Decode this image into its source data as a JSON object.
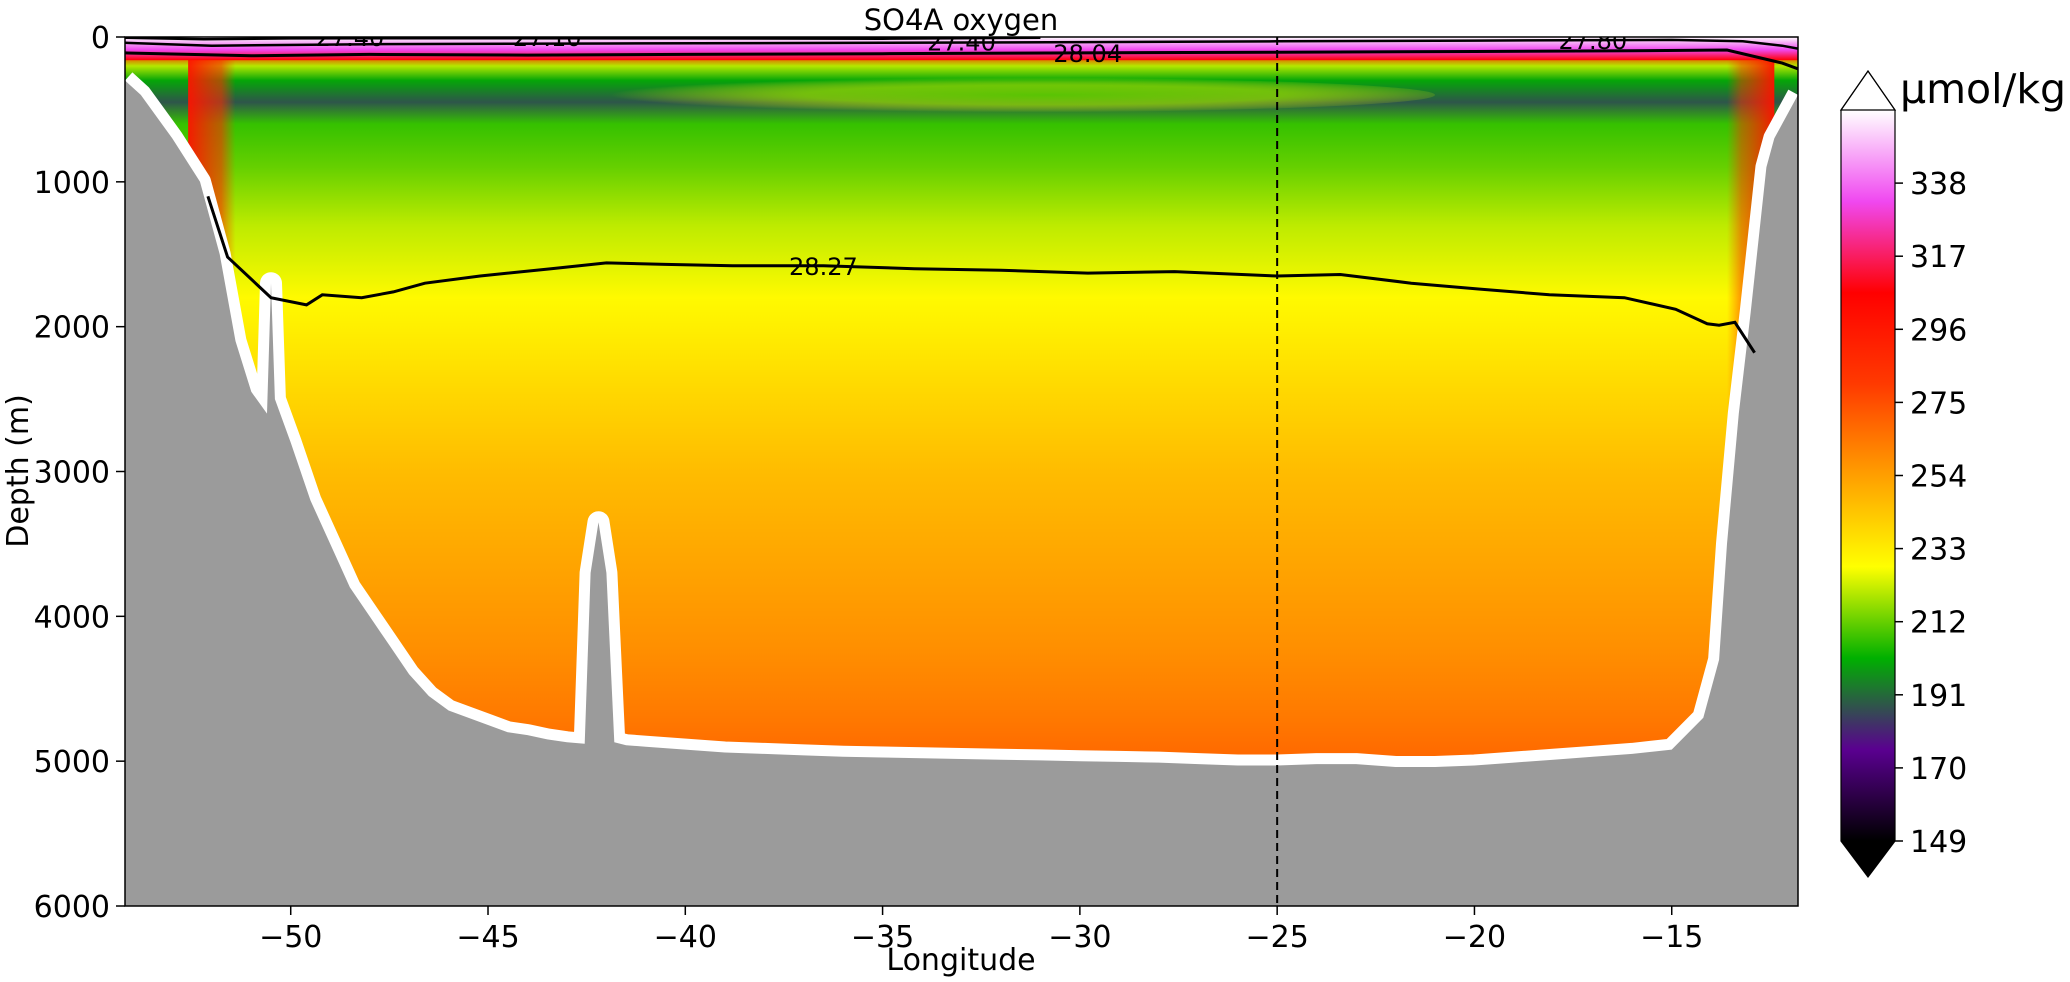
{
  "chart_data": {
    "type": "heatmap",
    "title": "SO4A oxygen",
    "xlabel": "Longitude",
    "ylabel": "Depth (m)",
    "xlim": [
      -54.2,
      -11.8
    ],
    "ylim": [
      6000,
      0
    ],
    "x_ticks": [
      -50,
      -45,
      -40,
      -35,
      -30,
      -25,
      -20,
      -15
    ],
    "x_tick_labels": [
      "−50",
      "−45",
      "−40",
      "−35",
      "−30",
      "−25",
      "−20",
      "−15"
    ],
    "y_ticks": [
      0,
      1000,
      2000,
      3000,
      4000,
      5000,
      6000
    ],
    "y_tick_labels": [
      "0",
      "1000",
      "2000",
      "3000",
      "4000",
      "5000",
      "6000"
    ],
    "colorbar": {
      "unit": "µmol/kg",
      "ticks": [
        149,
        170,
        191,
        212,
        233,
        254,
        275,
        296,
        317,
        338
      ],
      "tick_labels": [
        "149",
        "170",
        "191",
        "212",
        "233",
        "254",
        "275",
        "296",
        "317",
        "338"
      ],
      "range": [
        149,
        359
      ],
      "extend": "both",
      "colors": [
        "#000000",
        "#5a0090",
        "#00b000",
        "#ffff00",
        "#ff9f00",
        "#ff3a00",
        "#ff0000",
        "#f048f0",
        "#ffffff"
      ]
    },
    "reference_line": {
      "x": -25,
      "style": "dashed"
    },
    "contour_labels": [
      {
        "text": "27.40",
        "x": -48.5,
        "depth": 0
      },
      {
        "text": "27.10",
        "x": -43.5,
        "depth": 0
      },
      {
        "text": "27.40",
        "x": -33,
        "depth": 30
      },
      {
        "text": "28.04",
        "x": -29.8,
        "depth": 110
      },
      {
        "text": "27.80",
        "x": -17,
        "depth": 20
      },
      {
        "text": "28.27",
        "x": -36.5,
        "depth": 1580
      }
    ],
    "isopycnal_28_27": {
      "x": [
        -52.1,
        -51.6,
        -50.5,
        -49.6,
        -49.2,
        -48.2,
        -47.4,
        -46.6,
        -45.2,
        -43.4,
        -42.0,
        -40.5,
        -38.8,
        -36.5,
        -34.2,
        -32.0,
        -29.8,
        -27.6,
        -25.0,
        -23.4,
        -21.6,
        -19.9,
        -18.1,
        -16.2,
        -14.9,
        -14.1,
        -13.8,
        -13.4,
        -12.9
      ],
      "depth": [
        1100,
        1520,
        1800,
        1850,
        1780,
        1800,
        1760,
        1700,
        1650,
        1600,
        1560,
        1570,
        1580,
        1580,
        1600,
        1610,
        1630,
        1620,
        1650,
        1640,
        1700,
        1740,
        1780,
        1800,
        1880,
        1980,
        1990,
        1970,
        2180
      ]
    },
    "isopycnal_28_04": {
      "x": [
        -54.2,
        -51,
        -48,
        -44,
        -40,
        -35,
        -30,
        -25,
        -20,
        -16,
        -13.6,
        -12.2,
        -11.8
      ],
      "depth": [
        110,
        130,
        120,
        125,
        120,
        115,
        110,
        105,
        100,
        95,
        90,
        180,
        220
      ]
    },
    "isopycnal_27_80": {
      "x": [
        -54.2,
        -52,
        -48,
        -42,
        -35,
        -30,
        -25,
        -20,
        -15,
        -13.2,
        -12.2,
        -11.8
      ],
      "depth": [
        40,
        60,
        50,
        45,
        40,
        35,
        30,
        25,
        20,
        30,
        60,
        80
      ]
    },
    "isopycnal_27_40": {
      "x": [
        -54.2,
        -52.2,
        -50,
        -46,
        -40,
        -35,
        -31
      ],
      "depth": [
        5,
        15,
        10,
        8,
        10,
        12,
        5
      ]
    },
    "bathymetry": {
      "x": [
        -54.2,
        -53.8,
        -53.0,
        -52.3,
        -51.8,
        -51.4,
        -51.0,
        -50.6,
        -50.5,
        -50.4,
        -50.0,
        -49.5,
        -49.0,
        -48.5,
        -48.0,
        -47.5,
        -47.0,
        -46.5,
        -46.0,
        -45.5,
        -45.0,
        -44.5,
        -44.0,
        -43.5,
        -43.0,
        -42.55,
        -42.4,
        -42.2,
        -42.0,
        -41.8,
        -41.5,
        -41.0,
        -40.0,
        -39.0,
        -38.0,
        -37.0,
        -36.0,
        -35.0,
        -34.0,
        -33.0,
        -32.0,
        -31.0,
        -30.0,
        -29.0,
        -28.0,
        -27.0,
        -26.0,
        -25.0,
        -24.0,
        -23.0,
        -22.0,
        -21.0,
        -20.0,
        -19.0,
        -18.0,
        -17.0,
        -16.0,
        -15.0,
        -14.2,
        -13.8,
        -13.6,
        -13.3,
        -13.0,
        -12.6,
        -12.4,
        -12.2,
        -11.8
      ],
      "depth": [
        300,
        400,
        700,
        1000,
        1500,
        2100,
        2450,
        2600,
        1700,
        2500,
        2800,
        3200,
        3500,
        3800,
        4000,
        4200,
        4400,
        4550,
        4650,
        4700,
        4750,
        4800,
        4820,
        4850,
        4870,
        4880,
        3700,
        3350,
        3700,
        4870,
        4890,
        4900,
        4920,
        4940,
        4950,
        4960,
        4970,
        4975,
        4980,
        4985,
        4990,
        4995,
        5000,
        5005,
        5010,
        5020,
        5030,
        5030,
        5020,
        5020,
        5040,
        5040,
        5030,
        5010,
        4990,
        4970,
        4950,
        4920,
        4700,
        4300,
        3500,
        2600,
        1900,
        900,
        700,
        600,
        400
      ]
    },
    "oxygen_vertical_profile": {
      "depth": [
        0,
        60,
        120,
        200,
        300,
        450,
        600,
        900,
        1300,
        1800,
        2400,
        3000,
        3600,
        4200,
        4700,
        5100
      ],
      "value": [
        345,
        318,
        290,
        220,
        200,
        188,
        207,
        212,
        221,
        229,
        238,
        246,
        252,
        258,
        264,
        270
      ]
    },
    "boundary_current": {
      "west_x_range": [
        -52.6,
        -51.4
      ],
      "east_x_range": [
        -13.6,
        -12.4
      ],
      "value": 278,
      "max_depth": 3800
    }
  }
}
